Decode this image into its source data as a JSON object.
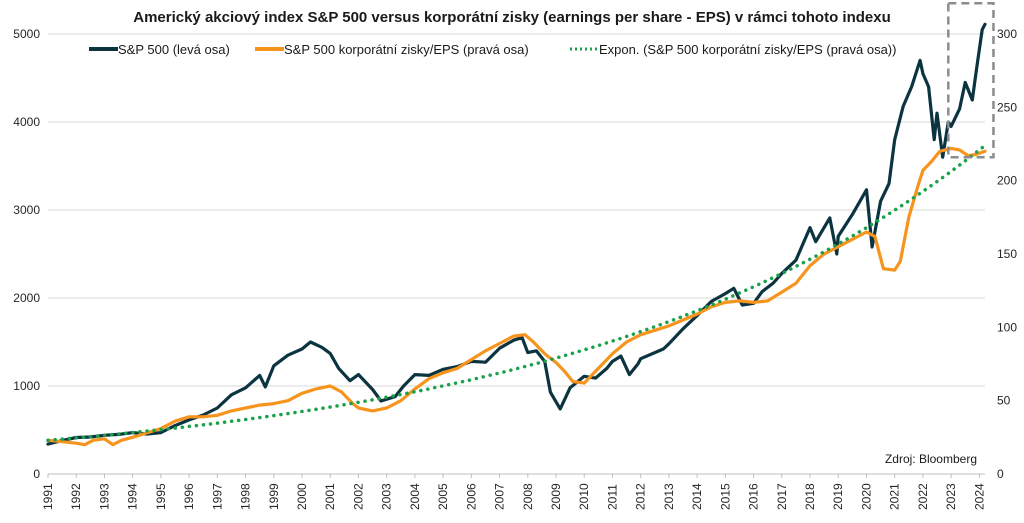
{
  "chart_data": {
    "type": "line",
    "title": "Americký akciový index S&P 500 versus korporátní zisky (earnings per share - EPS) v rámci tohoto indexu",
    "source": "Zdroj: Bloomberg",
    "grid": "horizontal",
    "legend_position": "top",
    "x_ticks": [
      "1991",
      "1992",
      "1993",
      "1994",
      "1995",
      "1996",
      "1997",
      "1998",
      "1999",
      "2000",
      "2001",
      "2002",
      "2003",
      "2004",
      "2005",
      "2006",
      "2007",
      "2008",
      "2009",
      "2010",
      "2011",
      "2012",
      "2013",
      "2014",
      "2015",
      "2016",
      "2017",
      "2018",
      "2019",
      "2020",
      "2021",
      "2022",
      "2023",
      "2024"
    ],
    "xlim": [
      1991,
      2024.2
    ],
    "y_left": {
      "lim": [
        0,
        5000
      ],
      "ticks": [
        "0",
        "1000",
        "2000",
        "3000",
        "4000",
        "5000"
      ]
    },
    "y_right": {
      "lim": [
        0,
        300
      ],
      "ticks": [
        "0",
        "50",
        "100",
        "150",
        "200",
        "250",
        "300"
      ]
    },
    "highlight_box": {
      "x": [
        2022.9,
        2024.5
      ],
      "y_left": [
        3600,
        5350
      ]
    },
    "series": [
      {
        "name": "S&P 500 (levá osa)",
        "color": "#0b3440",
        "axis": "left",
        "points": [
          [
            1991.0,
            340
          ],
          [
            1991.5,
            380
          ],
          [
            1992.0,
            415
          ],
          [
            1992.5,
            420
          ],
          [
            1993.0,
            440
          ],
          [
            1993.5,
            450
          ],
          [
            1994.0,
            470
          ],
          [
            1994.5,
            455
          ],
          [
            1995.0,
            470
          ],
          [
            1995.5,
            550
          ],
          [
            1996.0,
            615
          ],
          [
            1996.5,
            670
          ],
          [
            1997.0,
            750
          ],
          [
            1997.5,
            900
          ],
          [
            1998.0,
            980
          ],
          [
            1998.5,
            1120
          ],
          [
            1998.7,
            990
          ],
          [
            1999.0,
            1230
          ],
          [
            1999.5,
            1350
          ],
          [
            2000.0,
            1420
          ],
          [
            2000.3,
            1500
          ],
          [
            2000.7,
            1440
          ],
          [
            2001.0,
            1370
          ],
          [
            2001.3,
            1200
          ],
          [
            2001.7,
            1060
          ],
          [
            2002.0,
            1130
          ],
          [
            2002.5,
            960
          ],
          [
            2002.8,
            830
          ],
          [
            2003.0,
            850
          ],
          [
            2003.3,
            880
          ],
          [
            2003.6,
            1000
          ],
          [
            2004.0,
            1130
          ],
          [
            2004.5,
            1120
          ],
          [
            2005.0,
            1190
          ],
          [
            2005.5,
            1220
          ],
          [
            2006.0,
            1280
          ],
          [
            2006.5,
            1270
          ],
          [
            2007.0,
            1430
          ],
          [
            2007.5,
            1520
          ],
          [
            2007.8,
            1550
          ],
          [
            2008.0,
            1380
          ],
          [
            2008.3,
            1400
          ],
          [
            2008.6,
            1280
          ],
          [
            2008.8,
            930
          ],
          [
            2009.0,
            820
          ],
          [
            2009.15,
            740
          ],
          [
            2009.5,
            980
          ],
          [
            2010.0,
            1110
          ],
          [
            2010.4,
            1090
          ],
          [
            2010.8,
            1200
          ],
          [
            2011.0,
            1280
          ],
          [
            2011.3,
            1340
          ],
          [
            2011.6,
            1130
          ],
          [
            2011.9,
            1250
          ],
          [
            2012.0,
            1310
          ],
          [
            2012.5,
            1380
          ],
          [
            2012.8,
            1420
          ],
          [
            2013.0,
            1480
          ],
          [
            2013.5,
            1650
          ],
          [
            2014.0,
            1800
          ],
          [
            2014.5,
            1960
          ],
          [
            2015.0,
            2050
          ],
          [
            2015.3,
            2110
          ],
          [
            2015.6,
            1920
          ],
          [
            2016.0,
            1940
          ],
          [
            2016.3,
            2070
          ],
          [
            2016.7,
            2170
          ],
          [
            2017.0,
            2280
          ],
          [
            2017.5,
            2430
          ],
          [
            2018.0,
            2800
          ],
          [
            2018.2,
            2640
          ],
          [
            2018.7,
            2910
          ],
          [
            2018.95,
            2500
          ],
          [
            2019.0,
            2700
          ],
          [
            2019.5,
            2950
          ],
          [
            2020.0,
            3230
          ],
          [
            2020.2,
            2580
          ],
          [
            2020.5,
            3100
          ],
          [
            2020.8,
            3300
          ],
          [
            2021.0,
            3800
          ],
          [
            2021.3,
            4180
          ],
          [
            2021.6,
            4400
          ],
          [
            2021.9,
            4700
          ],
          [
            2022.0,
            4550
          ],
          [
            2022.2,
            4400
          ],
          [
            2022.4,
            3800
          ],
          [
            2022.5,
            4100
          ],
          [
            2022.7,
            3600
          ],
          [
            2022.9,
            4000
          ],
          [
            2023.0,
            3950
          ],
          [
            2023.3,
            4150
          ],
          [
            2023.5,
            4450
          ],
          [
            2023.75,
            4250
          ],
          [
            2023.9,
            4600
          ],
          [
            2024.1,
            5050
          ],
          [
            2024.2,
            5110
          ]
        ]
      },
      {
        "name": "S&P 500 korporátní zisky/EPS (pravá osa)",
        "color": "#f7941d",
        "axis": "right",
        "points": [
          [
            1991.0,
            23
          ],
          [
            1991.5,
            22
          ],
          [
            1992.0,
            21
          ],
          [
            1992.3,
            20
          ],
          [
            1992.6,
            23
          ],
          [
            1993.0,
            24
          ],
          [
            1993.3,
            20
          ],
          [
            1993.6,
            23
          ],
          [
            1994.0,
            25
          ],
          [
            1994.5,
            28
          ],
          [
            1995.0,
            31
          ],
          [
            1995.5,
            36
          ],
          [
            1996.0,
            39
          ],
          [
            1996.5,
            39
          ],
          [
            1997.0,
            40
          ],
          [
            1997.5,
            43
          ],
          [
            1998.0,
            45
          ],
          [
            1998.5,
            47
          ],
          [
            1999.0,
            48
          ],
          [
            1999.5,
            50
          ],
          [
            2000.0,
            55
          ],
          [
            2000.5,
            58
          ],
          [
            2001.0,
            60
          ],
          [
            2001.4,
            56
          ],
          [
            2001.8,
            48
          ],
          [
            2002.0,
            45
          ],
          [
            2002.5,
            43
          ],
          [
            2003.0,
            45
          ],
          [
            2003.5,
            50
          ],
          [
            2004.0,
            58
          ],
          [
            2004.5,
            65
          ],
          [
            2005.0,
            69
          ],
          [
            2005.5,
            72
          ],
          [
            2006.0,
            78
          ],
          [
            2006.5,
            84
          ],
          [
            2007.0,
            89
          ],
          [
            2007.5,
            94
          ],
          [
            2007.9,
            95
          ],
          [
            2008.2,
            90
          ],
          [
            2008.6,
            82
          ],
          [
            2009.0,
            76
          ],
          [
            2009.3,
            70
          ],
          [
            2009.6,
            63
          ],
          [
            2010.0,
            62
          ],
          [
            2010.5,
            72
          ],
          [
            2011.0,
            82
          ],
          [
            2011.5,
            90
          ],
          [
            2012.0,
            95
          ],
          [
            2012.5,
            98
          ],
          [
            2013.0,
            101
          ],
          [
            2013.5,
            105
          ],
          [
            2014.0,
            109
          ],
          [
            2014.5,
            114
          ],
          [
            2015.0,
            117
          ],
          [
            2015.5,
            118
          ],
          [
            2016.0,
            117
          ],
          [
            2016.5,
            118
          ],
          [
            2017.0,
            124
          ],
          [
            2017.5,
            130
          ],
          [
            2018.0,
            142
          ],
          [
            2018.5,
            150
          ],
          [
            2019.0,
            155
          ],
          [
            2019.5,
            160
          ],
          [
            2020.0,
            165
          ],
          [
            2020.3,
            162
          ],
          [
            2020.6,
            140
          ],
          [
            2021.0,
            139
          ],
          [
            2021.2,
            145
          ],
          [
            2021.5,
            175
          ],
          [
            2021.8,
            195
          ],
          [
            2022.0,
            207
          ],
          [
            2022.3,
            213
          ],
          [
            2022.6,
            220
          ],
          [
            2023.0,
            222
          ],
          [
            2023.3,
            221
          ],
          [
            2023.6,
            217
          ],
          [
            2023.9,
            218
          ],
          [
            2024.2,
            220
          ]
        ]
      },
      {
        "name": "Expon. (S&P 500 korporátní zisky/EPS (pravá osa))",
        "color": "#1aa14a",
        "axis": "right",
        "dotted": true,
        "trend": {
          "start": [
            1991.0,
            23
          ],
          "end": [
            2024.2,
            224
          ]
        }
      }
    ]
  }
}
